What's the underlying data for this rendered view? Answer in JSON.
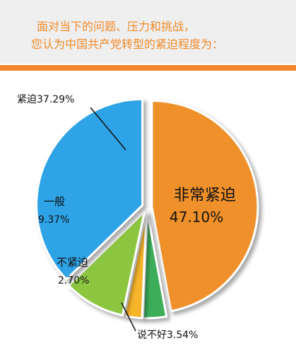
{
  "header": {
    "title_line1": "面对当下的问题、压力和挑战，",
    "title_line2": "您认为中国共产党转型的紧迫程度为："
  },
  "colors": {
    "header_bg": "#efefef",
    "accent": "#f0852a",
    "title_text": "#ef8a2a"
  },
  "chart_data": {
    "type": "pie",
    "title": "面对当下的问题、压力和挑战，您认为中国共产党转型的紧迫程度为：",
    "slices": [
      {
        "name": "非常紧迫",
        "value": 47.1,
        "label": "47.10%",
        "color": "#f0902a"
      },
      {
        "name": "说不好",
        "value": 3.54,
        "label": "3.54%",
        "color": "#3cad5a"
      },
      {
        "name": "不紧迫",
        "value": 2.7,
        "label": "2.70%",
        "color": "#f7b52c"
      },
      {
        "name": "一般",
        "value": 9.37,
        "label": "9.37%",
        "color": "#8cc63f"
      },
      {
        "name": "紧迫",
        "value": 37.29,
        "label": "37.29%",
        "color": "#2fa3e6"
      }
    ]
  }
}
